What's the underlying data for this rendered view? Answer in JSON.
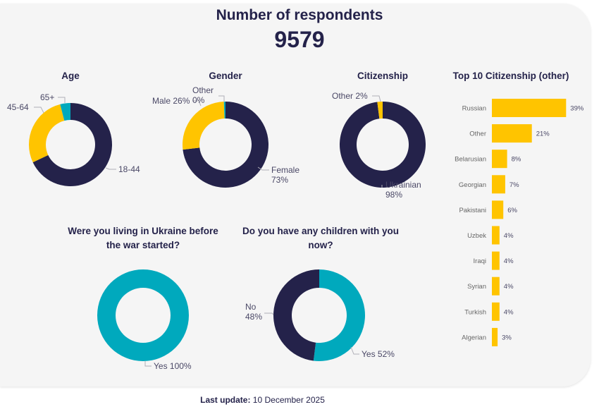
{
  "header": {
    "title": "Number of respondents",
    "count": "9579"
  },
  "colors": {
    "dark": "#24224a",
    "yellow": "#ffc400",
    "teal": "#00a9bd",
    "leader": "#b0b0b8"
  },
  "footer": {
    "label": "Last update:",
    "date": "10 December 2025"
  },
  "chart_data": [
    {
      "id": "age",
      "type": "pie",
      "title": "Age",
      "slices": [
        {
          "label": "18-44",
          "value": 68,
          "color": "#24224a"
        },
        {
          "label": "45-64",
          "value": 28,
          "color": "#ffc400"
        },
        {
          "label": "65+",
          "value": 4,
          "color": "#00a9bd"
        }
      ]
    },
    {
      "id": "gender",
      "type": "pie",
      "title": "Gender",
      "slices": [
        {
          "label": "Female 73%",
          "value": 73,
          "color": "#24224a"
        },
        {
          "label": "Male 26%",
          "value": 26,
          "color": "#ffc400"
        },
        {
          "label": "Other 0%",
          "value": 0,
          "color": "#00a9bd"
        }
      ]
    },
    {
      "id": "citizenship",
      "type": "pie",
      "title": "Citizenship",
      "slices": [
        {
          "label": "Ukrainian 98%",
          "value": 98,
          "color": "#24224a"
        },
        {
          "label": "Other 2%",
          "value": 2,
          "color": "#ffc400"
        }
      ]
    },
    {
      "id": "ukraine",
      "type": "pie",
      "title": "Were you living in Ukraine before the war started?",
      "slices": [
        {
          "label": "Yes 100%",
          "value": 100,
          "color": "#00a9bd"
        }
      ]
    },
    {
      "id": "children",
      "type": "pie",
      "title": "Do you have any children with you now?",
      "slices": [
        {
          "label": "Yes 52%",
          "value": 52,
          "color": "#00a9bd"
        },
        {
          "label": "No 48%",
          "value": 48,
          "color": "#24224a"
        }
      ]
    },
    {
      "id": "top10",
      "type": "bar",
      "orientation": "horizontal",
      "title": "Top 10 Citizenship (other)",
      "categories": [
        "Russian",
        "Other",
        "Belarusian",
        "Georgian",
        "Pakistani",
        "Uzbek",
        "Iraqi",
        "Syrian",
        "Turkish",
        "Algerian"
      ],
      "values": [
        39,
        21,
        8,
        7,
        6,
        4,
        4,
        4,
        4,
        3
      ],
      "value_labels": [
        "39%",
        "21%",
        "8%",
        "7%",
        "6%",
        "4%",
        "4%",
        "4%",
        "4%",
        "3%"
      ],
      "color": "#ffc400"
    }
  ]
}
